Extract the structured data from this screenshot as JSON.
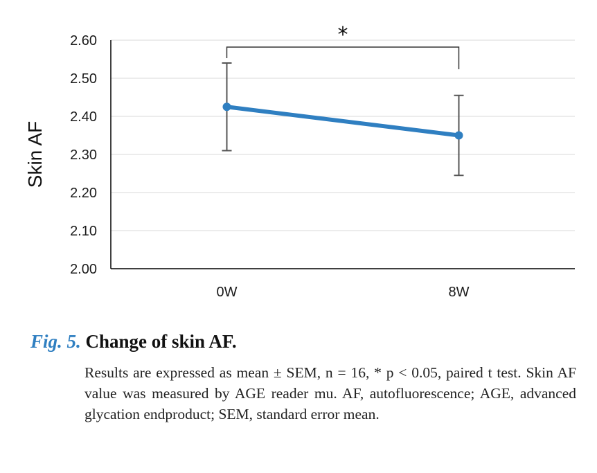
{
  "chart_data": {
    "type": "line",
    "categories": [
      "0W",
      "8W"
    ],
    "series": [
      {
        "values": [
          2.425,
          2.35
        ],
        "error": [
          0.115,
          0.105
        ],
        "color": "#2f7fc1"
      }
    ],
    "ylabel": "Skin AF",
    "xlabel": "",
    "ylim": [
      2.0,
      2.6
    ],
    "yticks": [
      "2.00",
      "2.10",
      "2.20",
      "2.30",
      "2.40",
      "2.50",
      "2.60"
    ],
    "grid": true,
    "significance": {
      "from": "0W",
      "to": "8W",
      "label": "*"
    }
  },
  "caption": {
    "label": "Fig. 5.",
    "title": "Change of skin AF.",
    "body": "Results are expressed as mean ± SEM, n = 16, * p < 0.05, paired t test. Skin AF value was measured by AGE reader mu. AF, autofluorescence; AGE, advanced glycation endproduct; SEM, standard error mean."
  }
}
